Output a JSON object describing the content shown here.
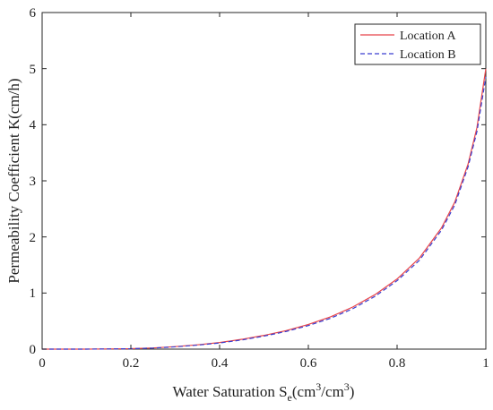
{
  "chart_data": {
    "type": "line",
    "title": "",
    "xlabel_main": "Water Saturation S",
    "xlabel_sub": "e",
    "xlabel_unit_open": "(cm",
    "xlabel_sup1": "3",
    "xlabel_unit_mid": "/cm",
    "xlabel_sup2": "3",
    "xlabel_unit_close": ")",
    "ylabel": "Permeability Coefficient K(cm/h)",
    "xlim": [
      0,
      1
    ],
    "ylim": [
      0,
      6
    ],
    "xticks": [
      0,
      0.2,
      0.4,
      0.6,
      0.8,
      1
    ],
    "xtick_labels": [
      "0",
      "0.2",
      "0.4",
      "0.6",
      "0.8",
      "1"
    ],
    "yticks": [
      0,
      1,
      2,
      3,
      4,
      5,
      6
    ],
    "ytick_labels": [
      "0",
      "1",
      "2",
      "3",
      "4",
      "5",
      "6"
    ],
    "grid": false,
    "legend_position": "top-right",
    "x": [
      0,
      0.1,
      0.2,
      0.25,
      0.3,
      0.35,
      0.4,
      0.45,
      0.5,
      0.55,
      0.6,
      0.65,
      0.7,
      0.75,
      0.8,
      0.85,
      0.9,
      0.93,
      0.96,
      0.98,
      1.0
    ],
    "series": [
      {
        "name": "Location A",
        "color": "#e8454a",
        "style": "solid",
        "values": [
          0,
          0.0001,
          0.008,
          0.021,
          0.045,
          0.077,
          0.118,
          0.175,
          0.245,
          0.33,
          0.44,
          0.575,
          0.75,
          0.97,
          1.25,
          1.62,
          2.16,
          2.62,
          3.3,
          3.95,
          5.0
        ]
      },
      {
        "name": "Location B",
        "color": "#3a3fd0",
        "style": "dashed",
        "values": [
          0,
          0.0001,
          0.007,
          0.019,
          0.041,
          0.071,
          0.11,
          0.163,
          0.232,
          0.315,
          0.42,
          0.55,
          0.72,
          0.94,
          1.22,
          1.58,
          2.12,
          2.57,
          3.25,
          3.88,
          4.85
        ]
      }
    ]
  }
}
